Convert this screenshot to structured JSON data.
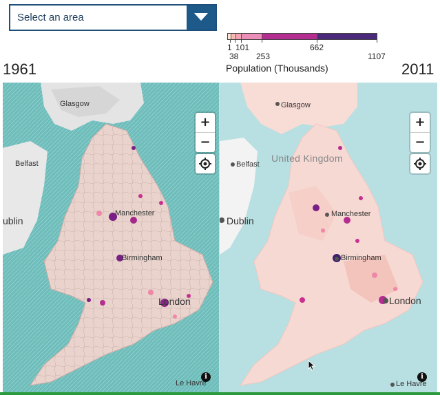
{
  "area_select": {
    "placeholder": "Select an area"
  },
  "legend": {
    "title": "Population (Thousands)",
    "breaks": [
      "1",
      "38",
      "101",
      "253",
      "662",
      "1107"
    ],
    "colors": [
      "#fde3d8",
      "#f8b9b0",
      "#ef87a8",
      "#c8308f",
      "#7a1f85",
      "#3b1f6b"
    ]
  },
  "maps": [
    {
      "year": "1961",
      "places": [
        "Glasgow",
        "Belfast",
        "ublin",
        "Manchester",
        "Birmingham",
        "London",
        "Le Havre"
      ]
    },
    {
      "year": "2011",
      "places": [
        "Glasgow",
        "United Kingdom",
        "Belfast",
        "Dublin",
        "Manchester",
        "Birmingham",
        "London",
        "Le Havre"
      ]
    }
  ],
  "controls": {
    "zoom_in": "+",
    "zoom_out": "−",
    "info": "i"
  },
  "colors": {
    "sea_1961": "#6fbdbb",
    "land_1961": "#e9d3cc",
    "sea_2011": "#b8dfe1",
    "land_2011": "#f7d9d3",
    "accent_dark": "#1d5a8a"
  }
}
